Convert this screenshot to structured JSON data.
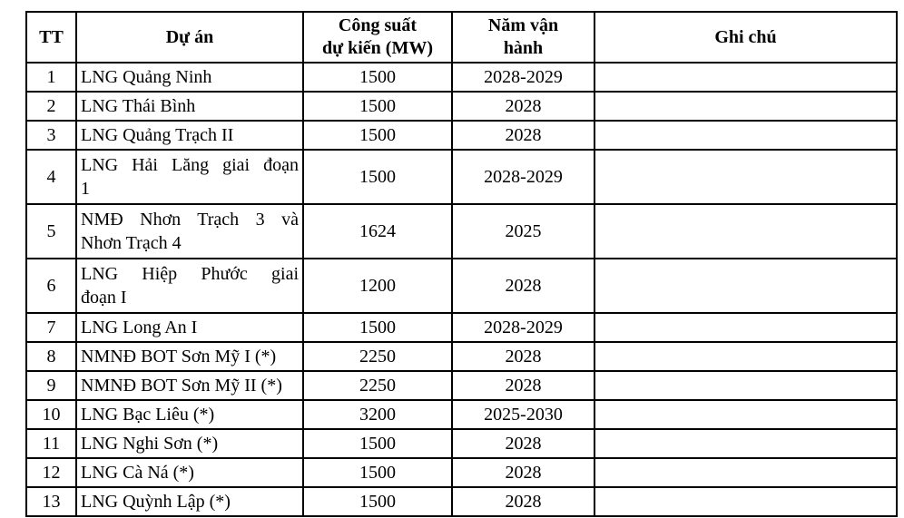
{
  "page": {
    "background": "#ffffff",
    "table_border_color": "#000000",
    "text_color": "#000000"
  },
  "table": {
    "columns": [
      {
        "label": "TT"
      },
      {
        "label": "Dự án"
      },
      {
        "label": "Công suất\ndự kiến (MW)"
      },
      {
        "label": "Năm vận\nhành"
      },
      {
        "label": "Ghi chú"
      }
    ],
    "rows": [
      {
        "tt": "1",
        "project": "LNG Quảng Ninh",
        "capacity_mw": "1500",
        "year": "2028-2029",
        "note": ""
      },
      {
        "tt": "2",
        "project": "LNG Thái Bình",
        "capacity_mw": "1500",
        "year": "2028",
        "note": ""
      },
      {
        "tt": "3",
        "project": "LNG Quảng Trạch II",
        "capacity_mw": "1500",
        "year": "2028",
        "note": ""
      },
      {
        "tt": "4",
        "project": "LNG Hải Lăng giai đoạn\n1",
        "capacity_mw": "1500",
        "year": "2028-2029",
        "note": ""
      },
      {
        "tt": "5",
        "project": "NMĐ Nhơn Trạch 3 và\nNhơn Trạch 4",
        "capacity_mw": "1624",
        "year": "2025",
        "note": ""
      },
      {
        "tt": "6",
        "project": "LNG Hiệp Phước giai\nđoạn I",
        "capacity_mw": "1200",
        "year": "2028",
        "note": ""
      },
      {
        "tt": "7",
        "project": "LNG Long An I",
        "capacity_mw": "1500",
        "year": "2028-2029",
        "note": ""
      },
      {
        "tt": "8",
        "project": "NMNĐ BOT Sơn Mỹ I (*)",
        "capacity_mw": "2250",
        "year": "2028",
        "note": ""
      },
      {
        "tt": "9",
        "project": "NMNĐ BOT Sơn Mỹ II (*)",
        "capacity_mw": "2250",
        "year": "2028",
        "note": ""
      },
      {
        "tt": "10",
        "project": "LNG Bạc Liêu (*)",
        "capacity_mw": "3200",
        "year": "2025-2030",
        "note": ""
      },
      {
        "tt": "11",
        "project": "LNG Nghi Sơn (*)",
        "capacity_mw": "1500",
        "year": "2028",
        "note": ""
      },
      {
        "tt": "12",
        "project": "LNG Cà Ná (*)",
        "capacity_mw": "1500",
        "year": "2028",
        "note": ""
      },
      {
        "tt": "13",
        "project": "LNG Quỳnh Lập (*)",
        "capacity_mw": "1500",
        "year": "2028",
        "note": ""
      }
    ]
  }
}
